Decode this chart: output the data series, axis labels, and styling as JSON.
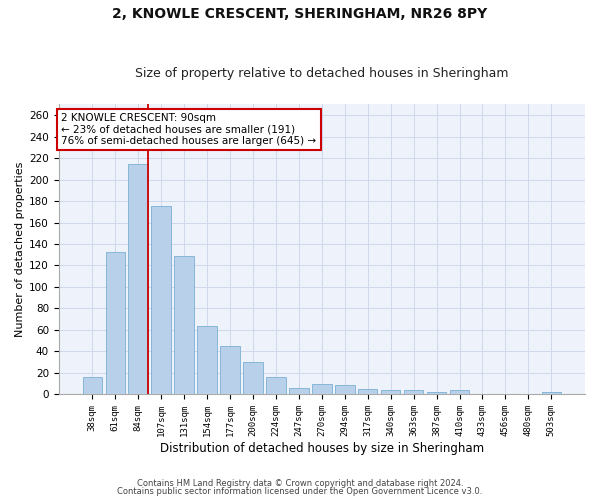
{
  "title1": "2, KNOWLE CRESCENT, SHERINGHAM, NR26 8PY",
  "title2": "Size of property relative to detached houses in Sheringham",
  "xlabel": "Distribution of detached houses by size in Sheringham",
  "ylabel": "Number of detached properties",
  "bar_labels": [
    "38sqm",
    "61sqm",
    "84sqm",
    "107sqm",
    "131sqm",
    "154sqm",
    "177sqm",
    "200sqm",
    "224sqm",
    "247sqm",
    "270sqm",
    "294sqm",
    "317sqm",
    "340sqm",
    "363sqm",
    "387sqm",
    "410sqm",
    "433sqm",
    "456sqm",
    "480sqm",
    "503sqm"
  ],
  "bar_values": [
    16,
    133,
    214,
    175,
    129,
    64,
    45,
    30,
    16,
    6,
    10,
    9,
    5,
    4,
    4,
    2,
    4,
    0,
    0,
    0,
    2
  ],
  "bar_color": "#b8d0ea",
  "bar_edge_color": "#7aafd4",
  "vline_color": "#cc0000",
  "vline_x_index": 2,
  "annotation_text": "2 KNOWLE CRESCENT: 90sqm\n← 23% of detached houses are smaller (191)\n76% of semi-detached houses are larger (645) →",
  "annotation_box_color": "#ffffff",
  "annotation_box_edge": "#cc0000",
  "ylim": [
    0,
    270
  ],
  "yticks": [
    0,
    20,
    40,
    60,
    80,
    100,
    120,
    140,
    160,
    180,
    200,
    220,
    240,
    260
  ],
  "footer1": "Contains HM Land Registry data © Crown copyright and database right 2024.",
  "footer2": "Contains public sector information licensed under the Open Government Licence v3.0.",
  "bg_color": "#eef2fa",
  "grid_color": "#d0d8ec",
  "title1_fontsize": 10,
  "title2_fontsize": 9
}
